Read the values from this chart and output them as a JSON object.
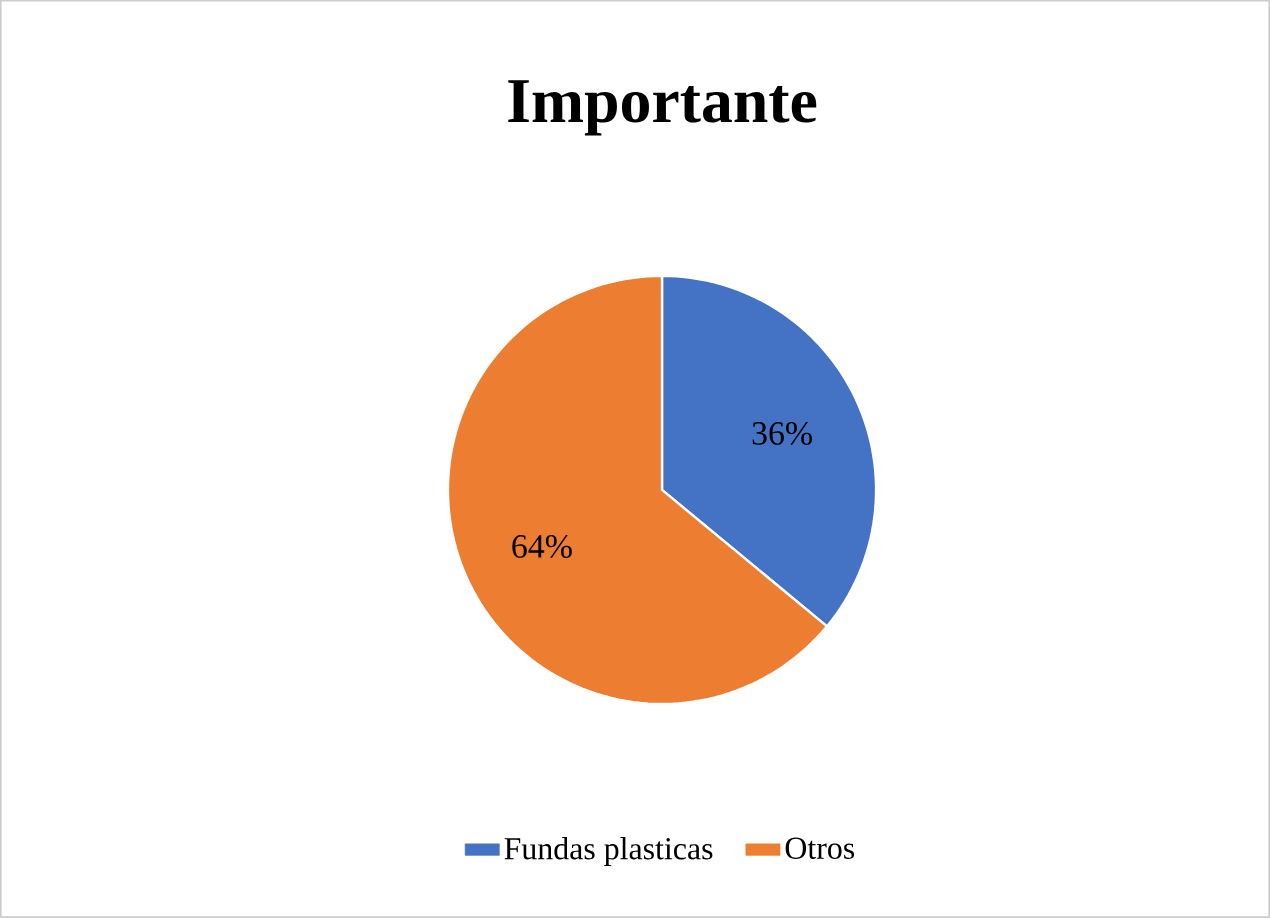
{
  "chart_data": {
    "type": "pie",
    "title": "Importante",
    "categories": [
      "Fundas plasticas",
      "Otros"
    ],
    "values": [
      36,
      64
    ],
    "colors": [
      "#4472c4",
      "#ed7d31"
    ],
    "value_labels": [
      "36%",
      "64%"
    ],
    "legend": "bottom"
  }
}
